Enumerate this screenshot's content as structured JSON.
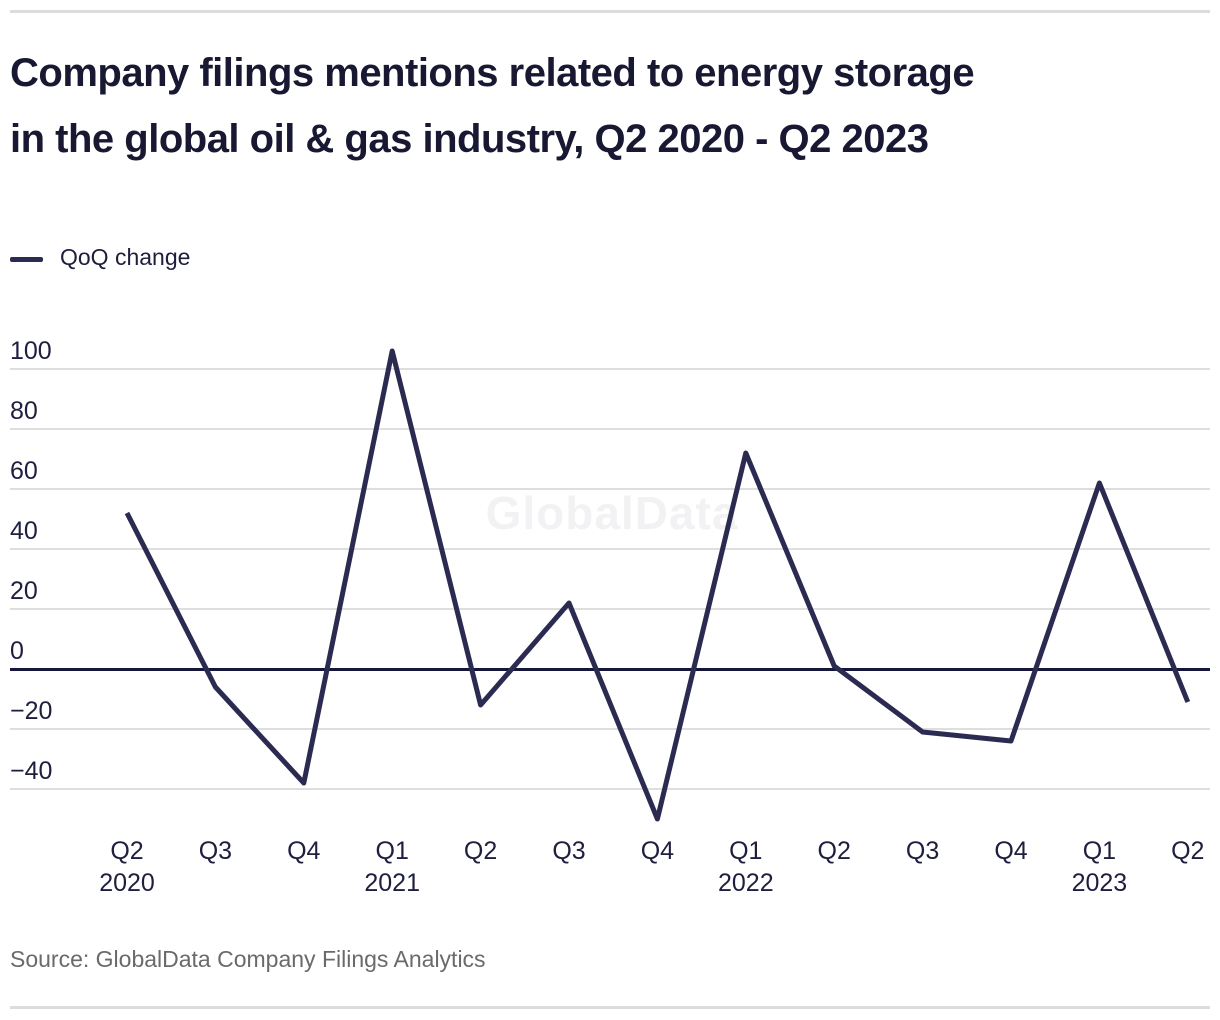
{
  "header": {
    "title_line1": "Company filings mentions related to energy storage",
    "title_line2": "in the global oil & gas industry, Q2 2020 - Q2 2023"
  },
  "legend": {
    "label": "QoQ change"
  },
  "watermark": "GlobalData",
  "source": "Source: GlobalData Company Filings Analytics",
  "colors": {
    "line": "#2b2b52",
    "title_text": "#181833",
    "axis_text": "#1e1e3f",
    "grid": "#dedede",
    "zero_line": "#16163a",
    "source_text": "#6a6a6a",
    "watermark": "#f2f2f4",
    "divider": "#dcdcdc"
  },
  "chart_data": {
    "type": "line",
    "title": "Company filings mentions related to energy storage in the global oil & gas industry, Q2 2020 - Q2 2023",
    "categories": [
      "Q2 2020",
      "Q3 2020",
      "Q4 2020",
      "Q1 2021",
      "Q2 2021",
      "Q3 2021",
      "Q4 2021",
      "Q1 2022",
      "Q2 2022",
      "Q3 2022",
      "Q4 2022",
      "Q1 2023",
      "Q2 2023"
    ],
    "x_tick_labels": [
      {
        "quarter": "Q2",
        "year": "2020"
      },
      {
        "quarter": "Q3",
        "year": ""
      },
      {
        "quarter": "Q4",
        "year": ""
      },
      {
        "quarter": "Q1",
        "year": "2021"
      },
      {
        "quarter": "Q2",
        "year": ""
      },
      {
        "quarter": "Q3",
        "year": ""
      },
      {
        "quarter": "Q4",
        "year": ""
      },
      {
        "quarter": "Q1",
        "year": "2022"
      },
      {
        "quarter": "Q2",
        "year": ""
      },
      {
        "quarter": "Q3",
        "year": ""
      },
      {
        "quarter": "Q4",
        "year": ""
      },
      {
        "quarter": "Q1",
        "year": "2023"
      },
      {
        "quarter": "Q2",
        "year": ""
      }
    ],
    "series": [
      {
        "name": "QoQ change",
        "values": [
          52,
          -6,
          -38,
          106,
          -12,
          22,
          -50,
          72,
          1,
          -21,
          -24,
          62,
          -11
        ]
      }
    ],
    "yticks": [
      100,
      80,
      60,
      40,
      20,
      0,
      -20,
      -40
    ],
    "ylim": [
      -55,
      112
    ],
    "grid": true,
    "legend_position": "top-left"
  }
}
